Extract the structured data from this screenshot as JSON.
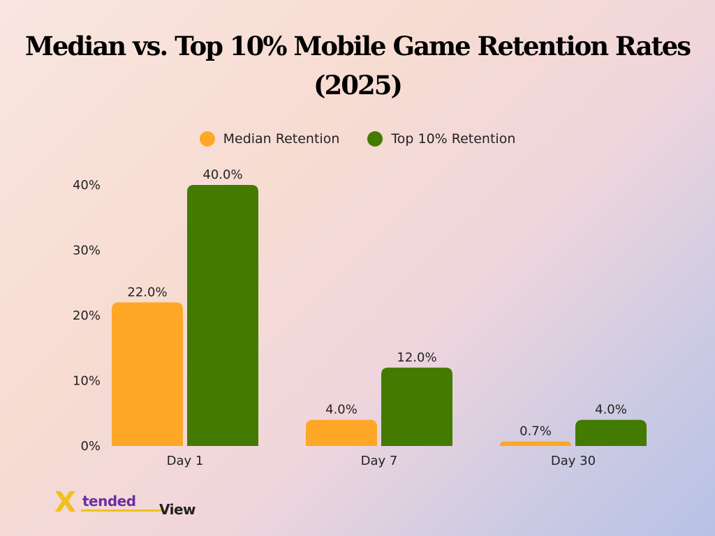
{
  "chart_data": {
    "type": "bar",
    "title_line1": "Median vs. Top 10% Mobile Game Retention Rates",
    "title_line2": "(2025)",
    "categories": [
      "Day 1",
      "Day 7",
      "Day 30"
    ],
    "series": [
      {
        "name": "Median Retention",
        "color": "#ffa726",
        "values": [
          22.0,
          4.0,
          0.7
        ],
        "labels": [
          "22.0%",
          "4.0%",
          "0.7%"
        ]
      },
      {
        "name": "Top 10% Retention",
        "color": "#437a00",
        "values": [
          40.0,
          12.0,
          4.0
        ],
        "labels": [
          "40.0%",
          "12.0%",
          "4.0%"
        ]
      }
    ],
    "ylim": [
      0,
      40
    ],
    "yticks": [
      0,
      10,
      20,
      30,
      40
    ],
    "ytick_labels": [
      "0%",
      "10%",
      "20%",
      "30%",
      "40%"
    ],
    "legend_position": "top-center",
    "grid": false
  },
  "logo": {
    "x_letter": "X",
    "middle": "tended",
    "tail": "View"
  }
}
